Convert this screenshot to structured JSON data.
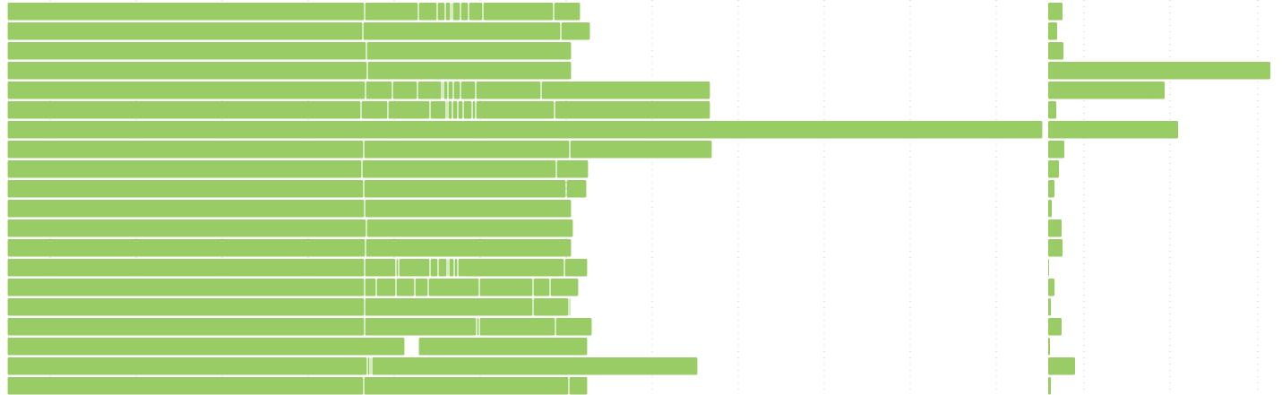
{
  "chart_data": {
    "type": "bar",
    "orientation": "horizontal",
    "grid": true,
    "colors": {
      "bar": "#9acc66",
      "grid": "#c8c8c8",
      "background": "#ffffff"
    },
    "left_panel": {
      "xlim": [
        0,
        1160
      ],
      "rows": [
        [
          [
            0,
            399
          ],
          [
            399,
            459
          ],
          [
            459,
            480
          ],
          [
            480,
            489
          ],
          [
            489,
            495
          ],
          [
            495,
            497
          ],
          [
            497,
            506
          ],
          [
            506,
            515
          ],
          [
            515,
            531
          ],
          [
            531,
            610
          ],
          [
            610,
            640
          ]
        ],
        [
          [
            0,
            397
          ],
          [
            397,
            618
          ],
          [
            618,
            651
          ]
        ],
        [
          [
            0,
            401
          ],
          [
            401,
            630
          ]
        ],
        [
          [
            0,
            402
          ],
          [
            402,
            630
          ]
        ],
        [
          [
            0,
            400
          ],
          [
            400,
            430
          ],
          [
            430,
            458
          ],
          [
            458,
            485
          ],
          [
            485,
            487
          ],
          [
            487,
            492
          ],
          [
            492,
            498
          ],
          [
            498,
            506
          ],
          [
            506,
            523
          ],
          [
            523,
            596
          ],
          [
            596,
            785
          ]
        ],
        [
          [
            0,
            395
          ],
          [
            395,
            425
          ],
          [
            425,
            472
          ],
          [
            472,
            490
          ],
          [
            490,
            492
          ],
          [
            492,
            497
          ],
          [
            497,
            503
          ],
          [
            503,
            509
          ],
          [
            509,
            519
          ],
          [
            519,
            523
          ],
          [
            523,
            611
          ],
          [
            611,
            785
          ]
        ],
        [
          [
            0,
            1156
          ]
        ],
        [
          [
            0,
            398
          ],
          [
            398,
            628
          ],
          [
            628,
            787
          ]
        ],
        [
          [
            0,
            396
          ],
          [
            396,
            613
          ],
          [
            613,
            649
          ]
        ],
        [
          [
            0,
            398
          ],
          [
            398,
            624
          ],
          [
            624,
            647
          ]
        ],
        [
          [
            0,
            399
          ],
          [
            399,
            630
          ]
        ],
        [
          [
            0,
            401
          ],
          [
            401,
            632
          ]
        ],
        [
          [
            0,
            400
          ],
          [
            400,
            630
          ]
        ],
        [
          [
            0,
            399
          ],
          [
            399,
            434
          ],
          [
            434,
            437
          ],
          [
            437,
            472
          ],
          [
            472,
            481
          ],
          [
            481,
            491
          ],
          [
            491,
            493
          ],
          [
            493,
            499
          ],
          [
            499,
            503
          ],
          [
            503,
            622
          ],
          [
            622,
            648
          ]
        ],
        [
          [
            0,
            399
          ],
          [
            399,
            412
          ],
          [
            412,
            434
          ],
          [
            434,
            455
          ],
          [
            455,
            470
          ],
          [
            470,
            527
          ],
          [
            527,
            587
          ],
          [
            587,
            606
          ],
          [
            606,
            638
          ]
        ],
        [
          [
            0,
            399
          ],
          [
            399,
            587
          ],
          [
            587,
            627
          ],
          [
            627,
            629
          ]
        ],
        [
          [
            0,
            399
          ],
          [
            399,
            524
          ],
          [
            524,
            527
          ],
          [
            527,
            612
          ],
          [
            612,
            653
          ]
        ],
        [
          [
            0,
            444
          ],
          [
            459,
            648
          ]
        ],
        [
          [
            0,
            402
          ],
          [
            402,
            405
          ],
          [
            405,
            407
          ],
          [
            407,
            771
          ]
        ],
        [
          [
            0,
            398
          ],
          [
            398,
            627
          ],
          [
            627,
            648
          ]
        ]
      ]
    },
    "right_panel": {
      "xlim": [
        0,
        260
      ],
      "values": [
        16,
        10,
        17,
        248,
        130,
        9,
        145,
        18,
        12,
        7,
        4,
        15,
        16,
        1,
        7,
        3,
        15,
        2,
        30,
        3
      ]
    }
  }
}
